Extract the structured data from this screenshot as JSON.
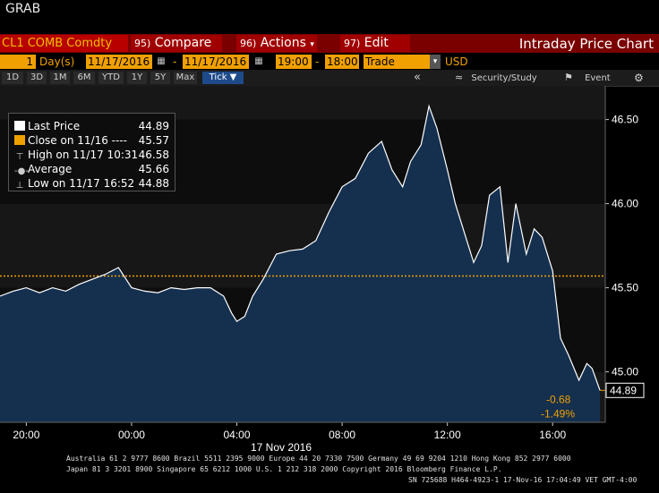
{
  "window": {
    "title": "GRAB"
  },
  "command_bar": {
    "ticker": "CL1 COMB Comdty",
    "compare": {
      "num": "95)",
      "label": "Compare"
    },
    "actions": {
      "num": "96)",
      "label": "Actions"
    },
    "edit": {
      "num": "97)",
      "label": "Edit"
    },
    "chart_title": "Intraday Price Chart"
  },
  "params": {
    "period_value": "1",
    "period_unit": "Day(s)",
    "start_date": "11/17/2016",
    "end_date": "11/17/2016",
    "start_time": "19:00",
    "end_time": "18:00",
    "field": "Trade",
    "currency": "USD"
  },
  "ranges": [
    "1D",
    "3D",
    "1M",
    "6M",
    "YTD",
    "1Y",
    "5Y",
    "Max"
  ],
  "range_selected": "Tick ▼",
  "toolbar": {
    "collapse": "«",
    "security_study": "Security/Study",
    "event": "Event",
    "settings_icon": "gear-icon"
  },
  "legend": {
    "last_price": {
      "label": "Last Price",
      "value": "44.89"
    },
    "close": {
      "label": "Close on 11/16  ----",
      "value": "45.57"
    },
    "high": {
      "label": "High on 11/17 10:31",
      "value": "46.58"
    },
    "average": {
      "label": "Average",
      "value": "45.66"
    },
    "low": {
      "label": "Low on 11/17 16:52",
      "value": "44.88"
    }
  },
  "annotations": {
    "last_value": "44.89",
    "change": "-0.68",
    "change_pct": "-1.49%"
  },
  "footer": {
    "line1": "Australia 61 2 9777 8600 Brazil 5511 2395 9000 Europe 44 20 7330 7500 Germany 49 69 9204 1210 Hong Kong 852 2977 6000",
    "line2": "Japan 81 3 3201 8900       Singapore 65 6212 1000       U.S. 1 212 318 2000            Copyright 2016 Bloomberg Finance L.P.",
    "line3": "SN 725688 H464-4923-1 17-Nov-16 17:04:49 VET  GMT-4:00"
  },
  "colors": {
    "price_line": "#ffffff",
    "area_fill": "#15304f",
    "close_line": "#f0a000",
    "accent_orange": "#f0a000",
    "bar_red": "#7a0000"
  },
  "chart_data": {
    "type": "area",
    "title": "",
    "xlabel": "17 Nov 2016",
    "ylabel": "",
    "x_ticks": [
      "20:00",
      "00:00",
      "04:00",
      "08:00",
      "12:00",
      "16:00"
    ],
    "y_ticks": [
      "45.00",
      "45.50",
      "46.00",
      "46.50"
    ],
    "ylim": [
      44.7,
      46.7
    ],
    "xlim_hours": [
      19,
      42
    ],
    "close_reference": 45.57,
    "series": [
      {
        "name": "Last Price",
        "x": [
          19.0,
          19.5,
          20.0,
          20.5,
          21.0,
          21.5,
          22.0,
          22.5,
          23.0,
          23.5,
          24.0,
          24.5,
          25.0,
          25.5,
          26.0,
          26.5,
          27.0,
          27.5,
          27.8,
          28.0,
          28.3,
          28.6,
          29.0,
          29.5,
          30.0,
          30.5,
          31.0,
          31.5,
          32.0,
          32.5,
          33.0,
          33.5,
          33.9,
          34.3,
          34.6,
          35.0,
          35.3,
          35.6,
          36.0,
          36.3,
          36.6,
          37.0,
          37.3,
          37.6,
          38.0,
          38.3,
          38.6,
          39.0,
          39.3,
          39.6,
          40.0,
          40.3,
          40.6,
          41.0,
          41.3,
          41.5,
          41.8
        ],
        "y": [
          45.45,
          45.48,
          45.5,
          45.47,
          45.5,
          45.48,
          45.52,
          45.55,
          45.58,
          45.62,
          45.5,
          45.48,
          45.47,
          45.5,
          45.49,
          45.5,
          45.5,
          45.45,
          45.35,
          45.3,
          45.33,
          45.45,
          45.55,
          45.7,
          45.72,
          45.73,
          45.78,
          45.95,
          46.1,
          46.15,
          46.3,
          46.37,
          46.2,
          46.1,
          46.25,
          46.35,
          46.58,
          46.45,
          46.2,
          46.0,
          45.85,
          45.65,
          45.75,
          46.05,
          46.1,
          45.65,
          46.0,
          45.7,
          45.85,
          45.8,
          45.6,
          45.2,
          45.1,
          44.95,
          45.05,
          45.02,
          44.89
        ]
      }
    ]
  }
}
